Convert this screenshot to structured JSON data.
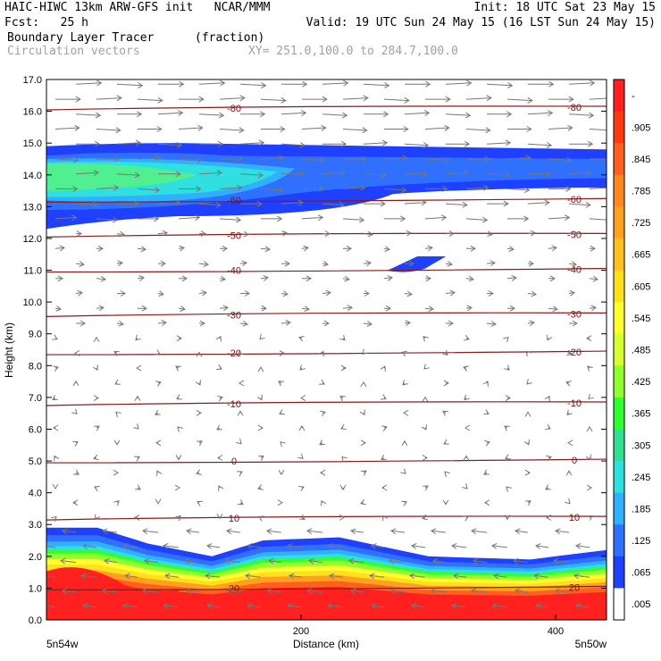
{
  "header": {
    "line1_left": "HAIC-HIWC 13km ARW-GFS init   NCAR/MMM",
    "line1_right": "Init: 18 UTC Sat 23 May 15",
    "line2_left": "Fcst:   25 h",
    "line2_right": "Valid: 19 UTC Sun 24 May 15 (16 LST Sun 24 May 15)",
    "line3_left": "Boundary Layer Tracer",
    "line3_unit": "(fraction)",
    "line4_left": "Circulation vectors",
    "line4_xy": "XY= 251.0,100.0 to 284.7,100.0"
  },
  "chart_data": {
    "type": "heatmap",
    "title": "Boundary Layer Tracer",
    "units": "fraction",
    "xlabel": "Distance (km)",
    "ylabel": "Height (km)",
    "xlim": [
      0,
      440
    ],
    "ylim": [
      0,
      17
    ],
    "x_ticks": [
      "200",
      "400"
    ],
    "x_tick_values": [
      200,
      400
    ],
    "x_end_labels": {
      "left": "5n54w",
      "right": "5n50w"
    },
    "y_ticks": [
      "0.0",
      "1.0",
      "2.0",
      "3.0",
      "4.0",
      "5.0",
      "6.0",
      "7.0",
      "8.0",
      "9.0",
      "10.0",
      "11.0",
      "12.0",
      "13.0",
      "14.0",
      "15.0",
      "16.0",
      "17.0"
    ],
    "colorbar_labels": [
      "-",
      ".905",
      ".845",
      ".785",
      ".725",
      ".665",
      ".605",
      ".545",
      ".485",
      ".425",
      ".365",
      ".305",
      ".245",
      ".185",
      ".125",
      ".065",
      ".005"
    ],
    "colorbar_colors": [
      "#ff2020",
      "#ff3a10",
      "#ff6020",
      "#ff8820",
      "#ffa020",
      "#ffc020",
      "#ffe020",
      "#ffff30",
      "#d8ff30",
      "#90ff30",
      "#30ff30",
      "#30e090",
      "#30e0e0",
      "#30b0ff",
      "#3070ff",
      "#2040ff",
      "#ffffff"
    ],
    "tracer_regions": [
      {
        "name": "boundary-layer",
        "top_km": [
          [
            0,
            2.9
          ],
          [
            40,
            2.9
          ],
          [
            80,
            2.4
          ],
          [
            130,
            2.0
          ],
          [
            170,
            2.5
          ],
          [
            230,
            2.6
          ],
          [
            300,
            2.0
          ],
          [
            380,
            1.9
          ],
          [
            440,
            2.2
          ]
        ],
        "core_color": "#ff2020"
      },
      {
        "name": "upper-layer",
        "x_range_km": [
          0,
          440
        ],
        "bottom_km": 12.3,
        "top_km": 14.9,
        "core_color": "#30ff60"
      },
      {
        "name": "small-patch",
        "x_center_km": 290,
        "y_center_km": 11.1,
        "color": "#2040ff"
      }
    ],
    "temperature_contours": [
      {
        "label": "-80",
        "height_km": 16.1
      },
      {
        "label": "-60",
        "height_km": 13.2
      },
      {
        "label": "-50",
        "height_km": 12.1
      },
      {
        "label": "-40",
        "height_km": 11.0
      },
      {
        "label": "-30",
        "height_km": 9.6
      },
      {
        "label": "-20",
        "height_km": 8.4
      },
      {
        "label": "-10",
        "height_km": 6.8
      },
      {
        "label": "0",
        "height_km": 5.0
      },
      {
        "label": "10",
        "height_km": 3.2
      },
      {
        "label": "20",
        "height_km": 1.0
      }
    ],
    "vectors": "circulation vectors",
    "grid": false
  }
}
